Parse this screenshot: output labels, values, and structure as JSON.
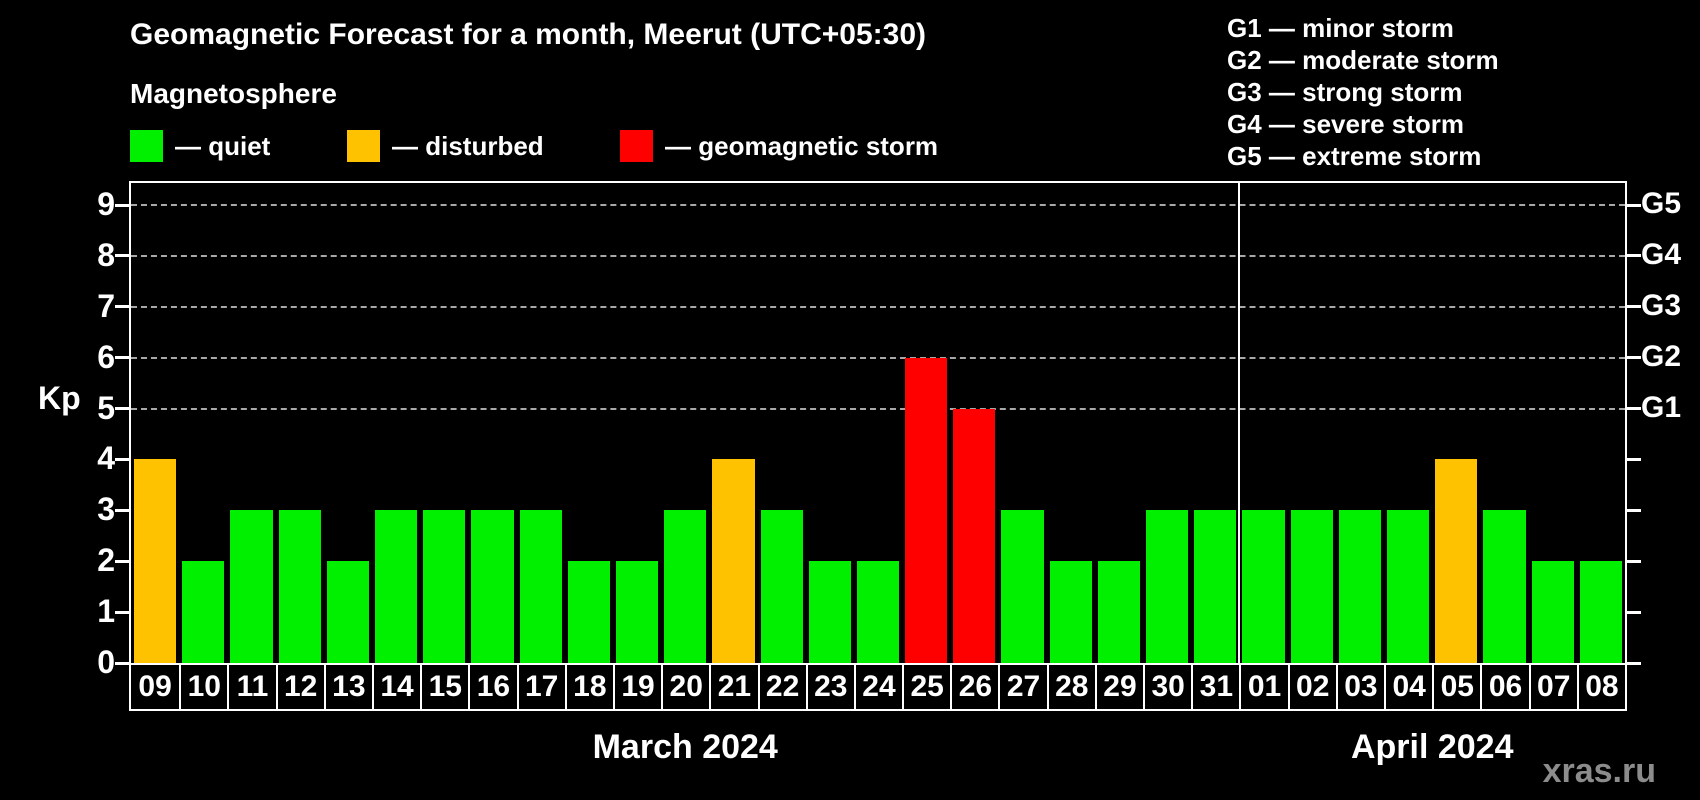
{
  "header": {
    "title": "Geomagnetic Forecast for a month, Meerut (UTC+05:30)",
    "subtitle": "Magnetosphere",
    "legend": [
      {
        "key": "quiet",
        "label": "— quiet",
        "color": "#00f000"
      },
      {
        "key": "disturbed",
        "label": "— disturbed",
        "color": "#ffc200"
      },
      {
        "key": "storm",
        "label": "— geomagnetic storm",
        "color": "#ff0000"
      }
    ],
    "g_scale_legend": [
      "G1 — minor storm",
      "G2 — moderate storm",
      "G3 — strong storm",
      "G4 — severe storm",
      "G5 — extreme storm"
    ]
  },
  "chart_data": {
    "type": "bar",
    "title": "Geomagnetic Forecast for a month, Meerut (UTC+05:30)",
    "ylabel": "Kp",
    "ylim": [
      0,
      9
    ],
    "yticks_left": [
      0,
      1,
      2,
      3,
      4,
      5,
      6,
      7,
      8,
      9
    ],
    "gridlines_at": [
      5,
      6,
      7,
      8,
      9
    ],
    "grid": "dashed horizontal at storm levels only",
    "legend_position": "top",
    "right_axis_labels": [
      {
        "kp": 5,
        "label": "G1"
      },
      {
        "kp": 6,
        "label": "G2"
      },
      {
        "kp": 7,
        "label": "G3"
      },
      {
        "kp": 8,
        "label": "G4"
      },
      {
        "kp": 9,
        "label": "G5"
      }
    ],
    "colors": {
      "quiet": "#00f000",
      "disturbed": "#ffc200",
      "storm": "#ff0000"
    },
    "color_rule": "Kp<=3 quiet(green), Kp=4 disturbed(orange), Kp>=5 storm(red)",
    "months": [
      {
        "label": "March 2024",
        "days": [
          {
            "day": "09",
            "kp": 4,
            "status": "disturbed"
          },
          {
            "day": "10",
            "kp": 2,
            "status": "quiet"
          },
          {
            "day": "11",
            "kp": 3,
            "status": "quiet"
          },
          {
            "day": "12",
            "kp": 3,
            "status": "quiet"
          },
          {
            "day": "13",
            "kp": 2,
            "status": "quiet"
          },
          {
            "day": "14",
            "kp": 3,
            "status": "quiet"
          },
          {
            "day": "15",
            "kp": 3,
            "status": "quiet"
          },
          {
            "day": "16",
            "kp": 3,
            "status": "quiet"
          },
          {
            "day": "17",
            "kp": 3,
            "status": "quiet"
          },
          {
            "day": "18",
            "kp": 2,
            "status": "quiet"
          },
          {
            "day": "19",
            "kp": 2,
            "status": "quiet"
          },
          {
            "day": "20",
            "kp": 3,
            "status": "quiet"
          },
          {
            "day": "21",
            "kp": 4,
            "status": "disturbed"
          },
          {
            "day": "22",
            "kp": 3,
            "status": "quiet"
          },
          {
            "day": "23",
            "kp": 2,
            "status": "quiet"
          },
          {
            "day": "24",
            "kp": 2,
            "status": "quiet"
          },
          {
            "day": "25",
            "kp": 6,
            "status": "storm"
          },
          {
            "day": "26",
            "kp": 5,
            "status": "storm"
          },
          {
            "day": "27",
            "kp": 3,
            "status": "quiet"
          },
          {
            "day": "28",
            "kp": 2,
            "status": "quiet"
          },
          {
            "day": "29",
            "kp": 2,
            "status": "quiet"
          },
          {
            "day": "30",
            "kp": 3,
            "status": "quiet"
          },
          {
            "day": "31",
            "kp": 3,
            "status": "quiet"
          }
        ]
      },
      {
        "label": "April 2024",
        "days": [
          {
            "day": "01",
            "kp": 3,
            "status": "quiet"
          },
          {
            "day": "02",
            "kp": 3,
            "status": "quiet"
          },
          {
            "day": "03",
            "kp": 3,
            "status": "quiet"
          },
          {
            "day": "04",
            "kp": 3,
            "status": "quiet"
          },
          {
            "day": "05",
            "kp": 4,
            "status": "disturbed"
          },
          {
            "day": "06",
            "kp": 3,
            "status": "quiet"
          },
          {
            "day": "07",
            "kp": 2,
            "status": "quiet"
          },
          {
            "day": "08",
            "kp": 2,
            "status": "quiet"
          }
        ]
      }
    ]
  },
  "footer": {
    "watermark": "xras.ru"
  }
}
